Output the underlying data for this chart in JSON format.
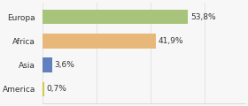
{
  "categories": [
    "Europa",
    "Africa",
    "Asia",
    "America"
  ],
  "values": [
    53.8,
    41.9,
    3.6,
    0.7
  ],
  "labels": [
    "53,8%",
    "41,9%",
    "3,6%",
    "0,7%"
  ],
  "bar_colors": [
    "#a8c47a",
    "#e8b87a",
    "#6080c0",
    "#d4c840"
  ],
  "background_color": "#f7f7f7",
  "xlim": [
    0,
    75
  ],
  "bar_height": 0.6,
  "label_fontsize": 6.5,
  "category_fontsize": 6.5,
  "figsize": [
    2.8,
    1.2
  ],
  "dpi": 100
}
